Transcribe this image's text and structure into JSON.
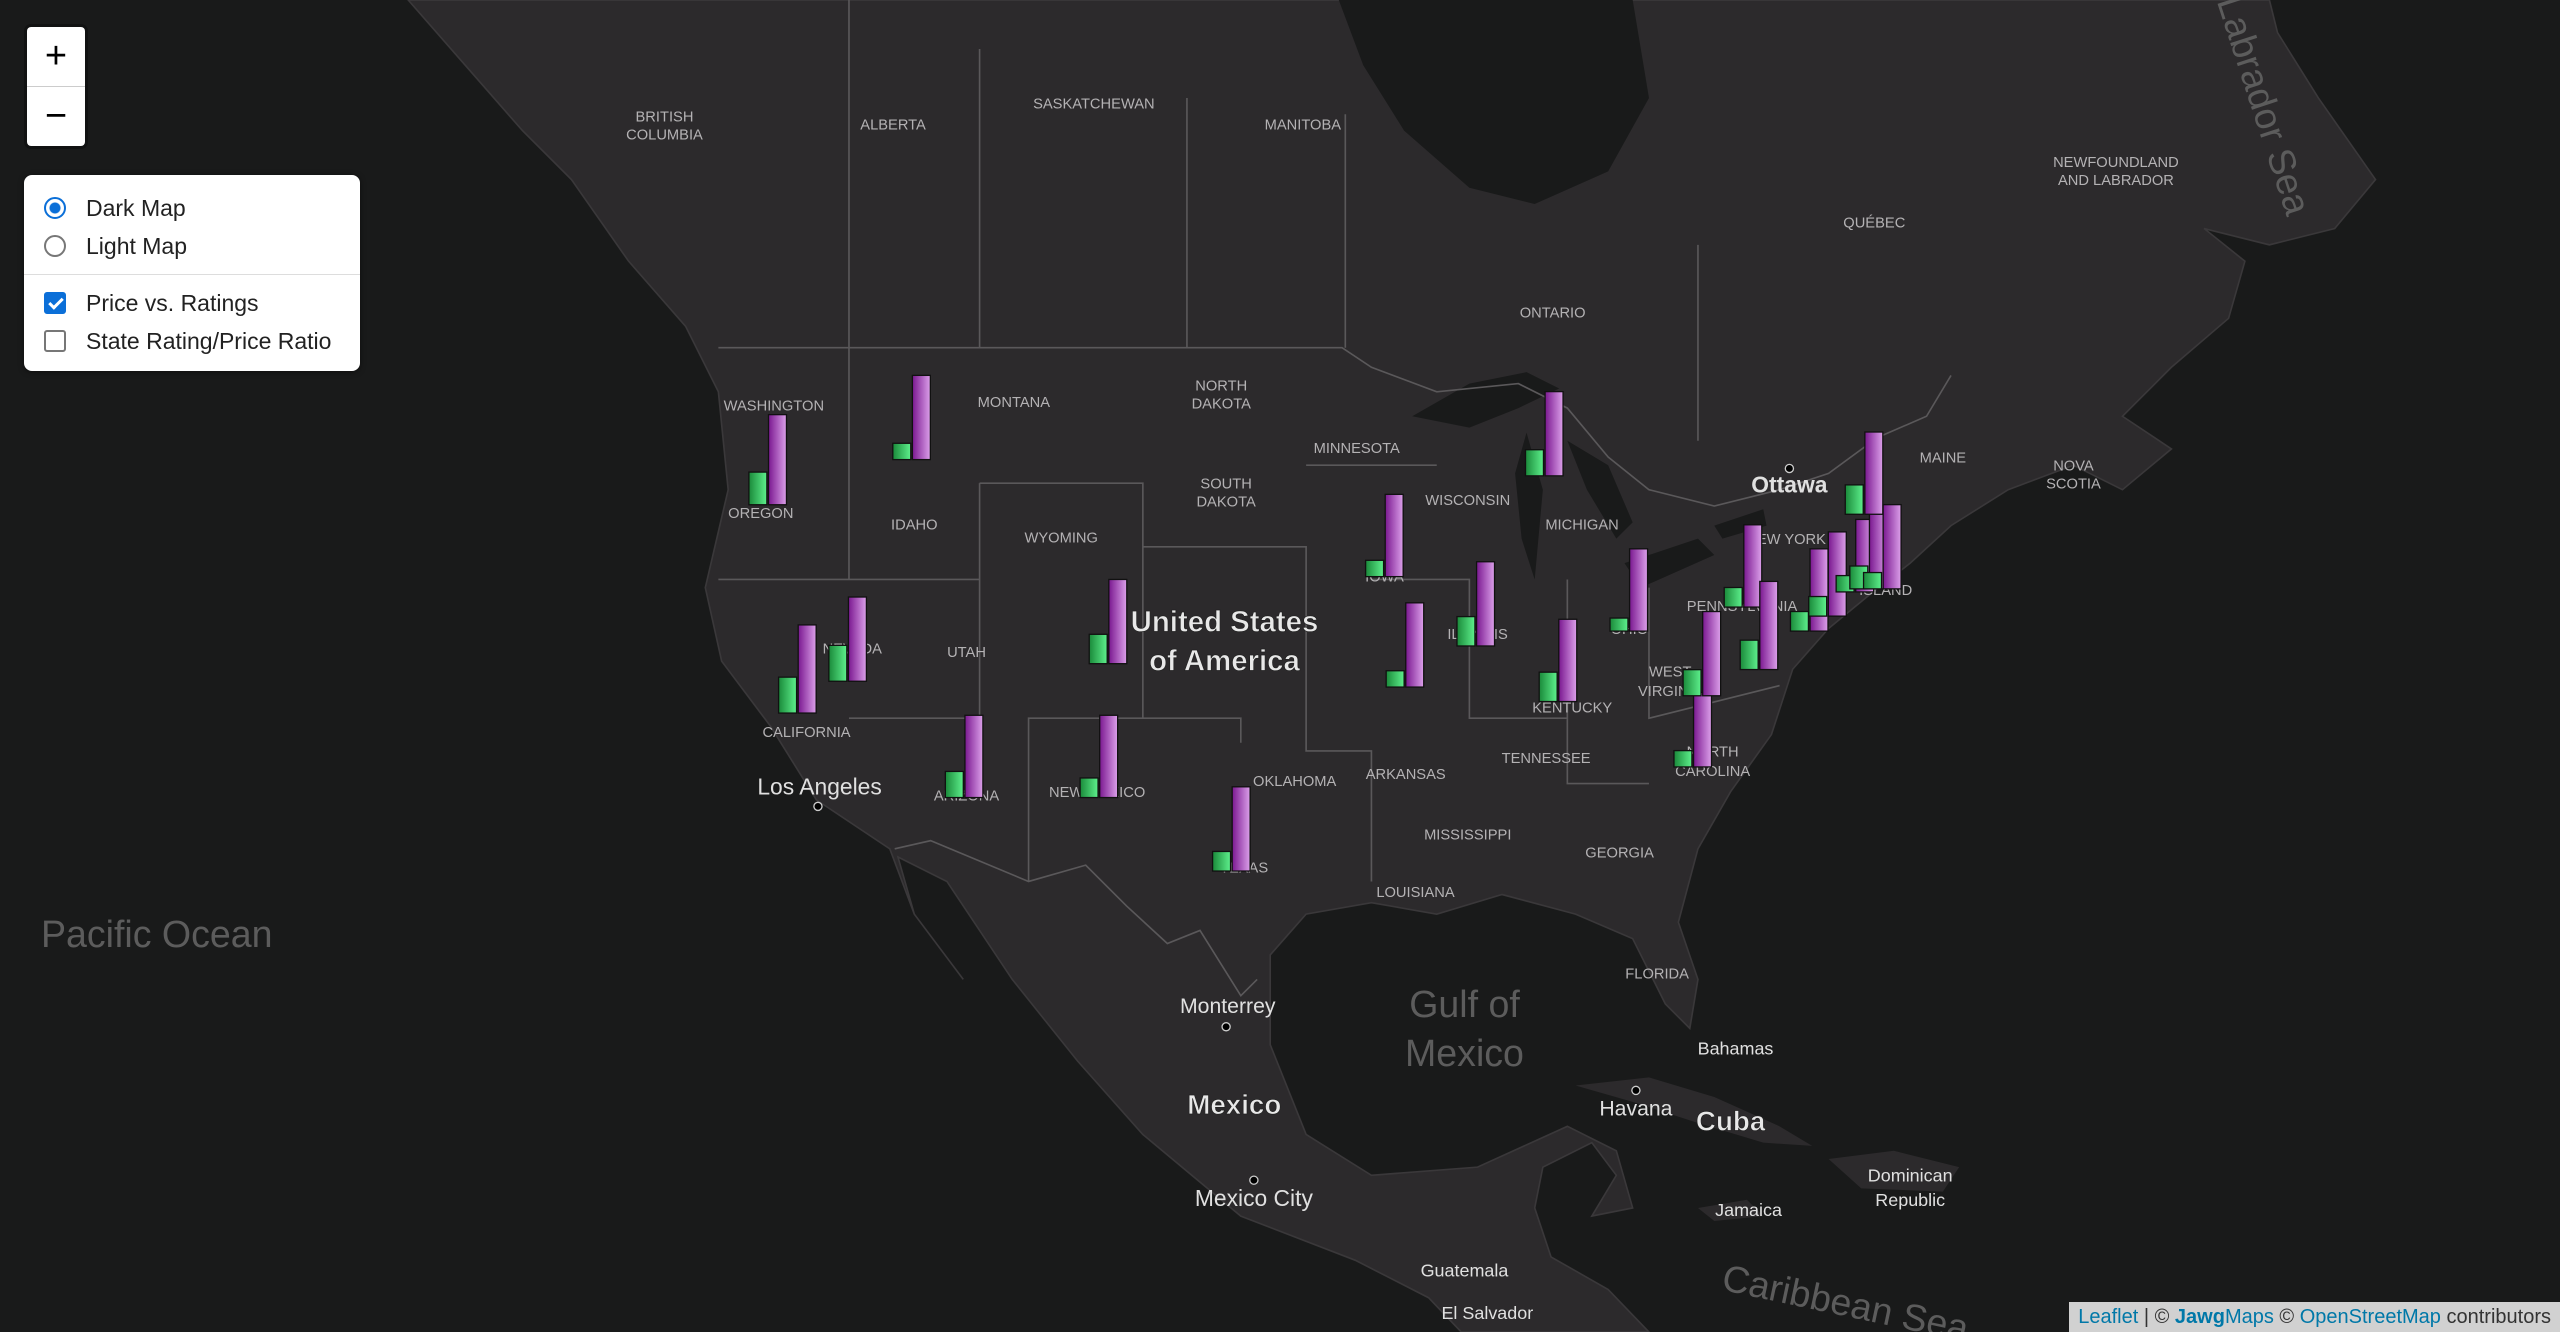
{
  "controls": {
    "zoom_in": "+",
    "zoom_out": "−",
    "base_layers": [
      "Dark Map",
      "Light Map"
    ],
    "selected_base": 0,
    "overlays": [
      "Price vs. Ratings",
      "State Rating/Price Ratio"
    ],
    "overlays_checked": [
      true,
      false
    ]
  },
  "map": {
    "labels": {
      "regions": [
        "BRITISH",
        "COLUMBIA",
        "ALBERTA",
        "SASKATCHEWAN",
        "MANITOBA",
        "ONTARIO",
        "QUÉBEC",
        "NEWFOUNDLAND",
        "AND LABRADOR",
        "NOVA",
        "SCOTIA",
        "WASHINGTON",
        "MONTANA",
        "NORTH",
        "DAKOTA",
        "MINNESOTA",
        "SOUTH",
        "DAKOTA",
        "WISCONSIN",
        "MICHIGAN",
        "MAINE",
        "OREGON",
        "IDAHO",
        "WYOMING",
        "NEW YORK",
        "IOWA",
        "PENNSYLVANIA",
        "ILLINOIS",
        "OHIO",
        "NEVADA",
        "UTAH",
        "WEST",
        "VIRGINIA",
        "KENTUCKY",
        "CALIFORNIA",
        "TENNESSEE",
        "NORTH",
        "CAROLINA",
        "OKLAHOMA",
        "ARIZONA",
        "NEW MEXICO",
        "ARKANSAS",
        "TEXAS",
        "MISSISSIPPI",
        "GEORGIA",
        "LOUISIANA",
        "FLORIDA",
        "ISLAND"
      ],
      "cities": [
        "Ottawa",
        "Los Angeles",
        "Monterrey",
        "Mexico City",
        "Havana",
        "Bahamas",
        "Jamaica",
        "Dominican",
        "Republic",
        "Guatemala",
        "El Salvador"
      ],
      "countries": [
        "United States",
        "of America",
        "Mexico",
        "Cuba"
      ],
      "water": [
        "Pacific Ocean",
        "Gulf of",
        "Mexico",
        "Labrador Sea",
        "Caribbean Sea"
      ]
    },
    "markers": {
      "price_color": "#2ecc71",
      "rating_color": "#a526c4",
      "points": [
        {
          "lon": -120.5,
          "lat": 44.2,
          "price": 2.0,
          "rating": 4.6
        },
        {
          "lon": -114.2,
          "lat": 45.6,
          "price": 1.0,
          "rating": 4.3
        },
        {
          "lon": -119.2,
          "lat": 37.3,
          "price": 2.2,
          "rating": 4.5
        },
        {
          "lon": -117.0,
          "lat": 38.4,
          "price": 2.2,
          "rating": 4.3
        },
        {
          "lon": -111.9,
          "lat": 34.3,
          "price": 1.6,
          "rating": 4.2
        },
        {
          "lon": -106.0,
          "lat": 34.3,
          "price": 1.2,
          "rating": 4.2
        },
        {
          "lon": -105.6,
          "lat": 39.0,
          "price": 1.8,
          "rating": 4.3
        },
        {
          "lon": -100.2,
          "lat": 31.6,
          "price": 1.2,
          "rating": 4.3
        },
        {
          "lon": -93.5,
          "lat": 41.9,
          "price": 1.0,
          "rating": 4.2
        },
        {
          "lon": -92.6,
          "lat": 38.2,
          "price": 1.0,
          "rating": 4.3
        },
        {
          "lon": -89.5,
          "lat": 39.6,
          "price": 1.8,
          "rating": 4.3
        },
        {
          "lon": -86.5,
          "lat": 45.1,
          "price": 1.6,
          "rating": 4.3
        },
        {
          "lon": -85.9,
          "lat": 37.7,
          "price": 1.8,
          "rating": 4.2
        },
        {
          "lon": -82.8,
          "lat": 40.1,
          "price": 0.8,
          "rating": 4.2
        },
        {
          "lon": -80.0,
          "lat": 35.4,
          "price": 1.0,
          "rating": 3.8
        },
        {
          "lon": -79.6,
          "lat": 37.9,
          "price": 1.6,
          "rating": 4.3
        },
        {
          "lon": -77.8,
          "lat": 40.9,
          "price": 1.2,
          "rating": 4.2
        },
        {
          "lon": -77.1,
          "lat": 38.8,
          "price": 1.8,
          "rating": 4.5
        },
        {
          "lon": -74.9,
          "lat": 40.1,
          "price": 1.2,
          "rating": 4.2
        },
        {
          "lon": -74.1,
          "lat": 40.6,
          "price": 1.2,
          "rating": 4.3
        },
        {
          "lon": -72.9,
          "lat": 41.4,
          "price": 1.0,
          "rating": 3.7
        },
        {
          "lon": -72.3,
          "lat": 41.5,
          "price": 1.4,
          "rating": 4.2
        },
        {
          "lon": -72.5,
          "lat": 43.9,
          "price": 1.8,
          "rating": 4.2
        },
        {
          "lon": -71.7,
          "lat": 41.5,
          "price": 1.0,
          "rating": 4.3
        }
      ]
    }
  },
  "attribution": {
    "leaflet": "Leaflet",
    "separator": "| ©",
    "jawg_bold": "Jawg",
    "jawg_rest": "Maps",
    "copyright": "©",
    "osm": "OpenStreetMap",
    "contributors": "contributors"
  }
}
